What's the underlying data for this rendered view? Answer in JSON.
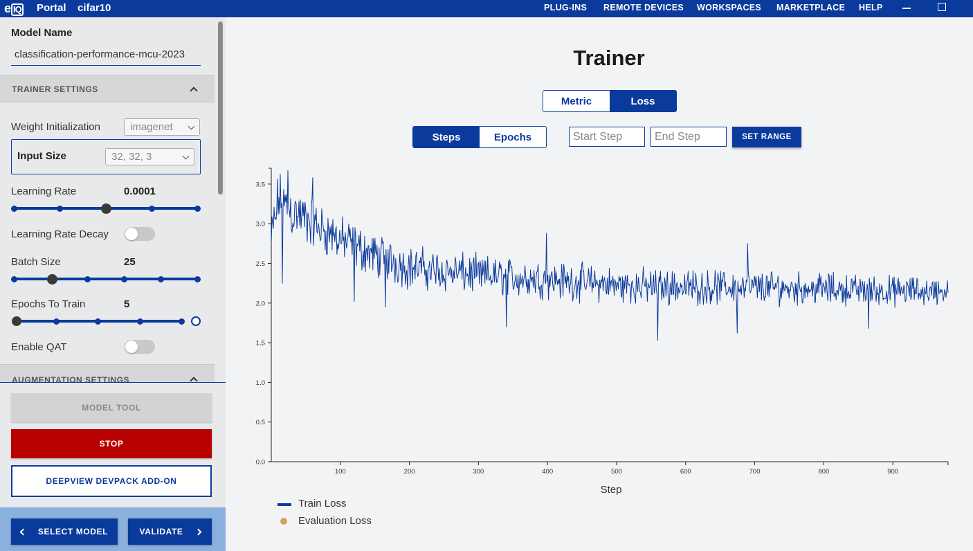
{
  "topbar": {
    "logo": "eIQ",
    "brand": "Portal",
    "project": "cifar10",
    "nav": [
      "PLUG-INS",
      "REMOTE DEVICES",
      "WORKSPACES",
      "MARKETPLACE",
      "HELP"
    ]
  },
  "sidebar": {
    "model_name_label": "Model Name",
    "model_name_value": "classification-performance-mcu-2023",
    "trainer_settings": "TRAINER SETTINGS",
    "weight_init_label": "Weight Initialization",
    "weight_init_value": "imagenet",
    "input_size_label": "Input Size",
    "input_size_value": "32, 32, 3",
    "learning_rate_label": "Learning Rate",
    "learning_rate_value": "0.0001",
    "learning_rate_level": 0.5,
    "lr_decay_label": "Learning Rate Decay",
    "lr_decay_on": false,
    "batch_size_label": "Batch Size",
    "batch_size_value": "25",
    "batch_size_level": 0.2,
    "epochs_label": "Epochs To Train",
    "epochs_value": "5",
    "epochs_level": 0.0,
    "qat_label": "Enable QAT",
    "qat_on": false,
    "augmentation_settings": "AUGMENTATION SETTINGS",
    "model_tool": "MODEL TOOL",
    "stop": "STOP",
    "devpack": "DEEPVIEW DEVPACK ADD-ON",
    "select_model": "SELECT MODEL",
    "validate": "VALIDATE"
  },
  "main": {
    "title": "Trainer",
    "tab_metric": "Metric",
    "tab_loss": "Loss",
    "tab_steps": "Steps",
    "tab_epochs": "Epochs",
    "start_placeholder": "Start Step",
    "end_placeholder": "End Step",
    "set_range": "SET RANGE"
  },
  "colors": {
    "accent": "#0a3a9c",
    "stop": "#b80000",
    "eval": "#d4a25c"
  },
  "chart_data": {
    "type": "line",
    "xlabel": "Step",
    "ylabel": "",
    "xlim": [
      0,
      980
    ],
    "ylim": [
      0,
      3.7
    ],
    "x_ticks": [
      100,
      200,
      300,
      400,
      500,
      600,
      700,
      800,
      900
    ],
    "y_ticks": [
      0.0,
      0.5,
      1.0,
      1.5,
      2.0,
      2.5,
      3.0,
      3.5
    ],
    "y_tick_labels": [
      "0.0",
      "0.5",
      "1.0",
      "1.5",
      "2.0",
      "2.5",
      "3.0",
      "3.5"
    ],
    "series": [
      {
        "name": "Train Loss",
        "anchors": [
          [
            0,
            2.75
          ],
          [
            10,
            3.3
          ],
          [
            30,
            3.15
          ],
          [
            60,
            3.0
          ],
          [
            100,
            2.8
          ],
          [
            150,
            2.6
          ],
          [
            200,
            2.45
          ],
          [
            300,
            2.35
          ],
          [
            400,
            2.3
          ],
          [
            500,
            2.22
          ],
          [
            600,
            2.2
          ],
          [
            700,
            2.2
          ],
          [
            800,
            2.18
          ],
          [
            900,
            2.15
          ],
          [
            980,
            2.15
          ]
        ],
        "amplitude": [
          [
            0,
            0.45
          ],
          [
            100,
            0.35
          ],
          [
            300,
            0.3
          ],
          [
            980,
            0.22
          ]
        ],
        "min_points": [
          [
            16,
            2.25
          ],
          [
            120,
            2.02
          ],
          [
            165,
            1.95
          ],
          [
            340,
            1.7
          ],
          [
            560,
            1.53
          ],
          [
            675,
            1.62
          ],
          [
            865,
            1.68
          ]
        ],
        "max_points": [
          [
            24,
            3.67
          ],
          [
            60,
            3.58
          ],
          [
            398,
            2.88
          ],
          [
            690,
            2.75
          ]
        ],
        "n_points": 980
      },
      {
        "name": "Evaluation Loss",
        "values": []
      }
    ],
    "legend": "bottom-left"
  }
}
